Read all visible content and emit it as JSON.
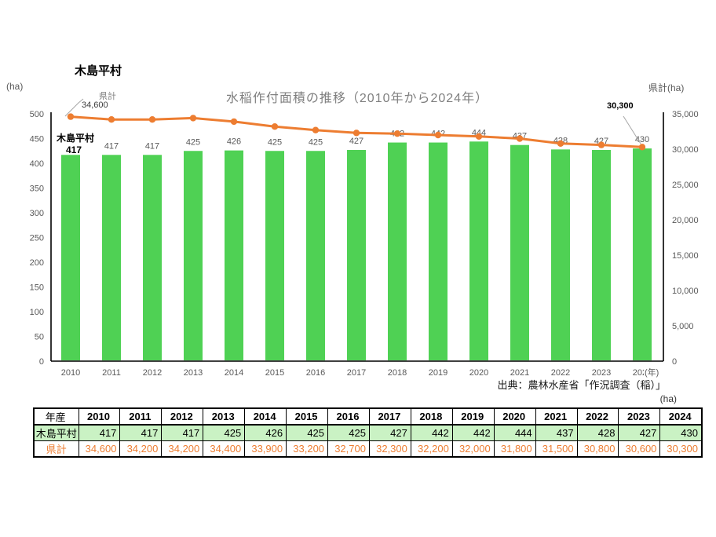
{
  "page": {
    "corner_title": "木島平村"
  },
  "chart": {
    "title": "水稲作付面積の推移（2010年から2024年）",
    "left_axis_unit": "(ha)",
    "right_axis_title": "県計(ha)",
    "x_axis_unit": "(年)",
    "first_bar_series_label": "木島平村",
    "annotations": {
      "line_series_label": "県計",
      "first_line_value": "34,600",
      "last_line_value": "30,300"
    }
  },
  "chart_data": {
    "type": "bar+line",
    "title": "水稲作付面積の推移（2010年から2024年）",
    "categories": [
      "2010",
      "2011",
      "2012",
      "2013",
      "2014",
      "2015",
      "2016",
      "2017",
      "2018",
      "2019",
      "2020",
      "2021",
      "2022",
      "2023",
      "2024"
    ],
    "series": [
      {
        "name": "木島平村",
        "type": "bar",
        "axis": "left",
        "color": "#4fd154",
        "values": [
          417,
          417,
          417,
          425,
          426,
          425,
          425,
          427,
          442,
          442,
          444,
          437,
          428,
          427,
          430
        ]
      },
      {
        "name": "県計",
        "type": "line",
        "axis": "right",
        "color": "#ED7D31",
        "values": [
          34600,
          34200,
          34200,
          34400,
          33900,
          33200,
          32700,
          32300,
          32200,
          32000,
          31800,
          31500,
          30800,
          30600,
          30300
        ]
      }
    ],
    "axes": {
      "left": {
        "unit": "(ha)",
        "min": 0,
        "max": 500,
        "step": 50
      },
      "right": {
        "title": "県計(ha)",
        "min": 0,
        "max": 35000,
        "step": 5000
      }
    },
    "grid": false,
    "legend": "none"
  },
  "source_note": "出典：農林水産省「作況調査（稲）」",
  "table_unit": "(ha)",
  "table": {
    "corner_header": "年産",
    "col_headers": [
      "2010",
      "2011",
      "2012",
      "2013",
      "2014",
      "2015",
      "2016",
      "2017",
      "2018",
      "2019",
      "2020",
      "2021",
      "2022",
      "2023",
      "2024"
    ],
    "rows": [
      {
        "label": "木島平村",
        "cells": [
          "417",
          "417",
          "417",
          "425",
          "426",
          "425",
          "425",
          "427",
          "442",
          "442",
          "444",
          "437",
          "428",
          "427",
          "430"
        ]
      },
      {
        "label": "県計",
        "cells": [
          "34,600",
          "34,200",
          "34,200",
          "34,400",
          "33,900",
          "33,200",
          "32,700",
          "32,300",
          "32,200",
          "32,000",
          "31,800",
          "31,500",
          "30,800",
          "30,600",
          "30,300"
        ]
      }
    ]
  },
  "colors": {
    "bar_green": "#4fd154",
    "line_orange": "#ED7D31",
    "table_row_green_bg": "#caf2c4",
    "gray_text": "#595959"
  }
}
